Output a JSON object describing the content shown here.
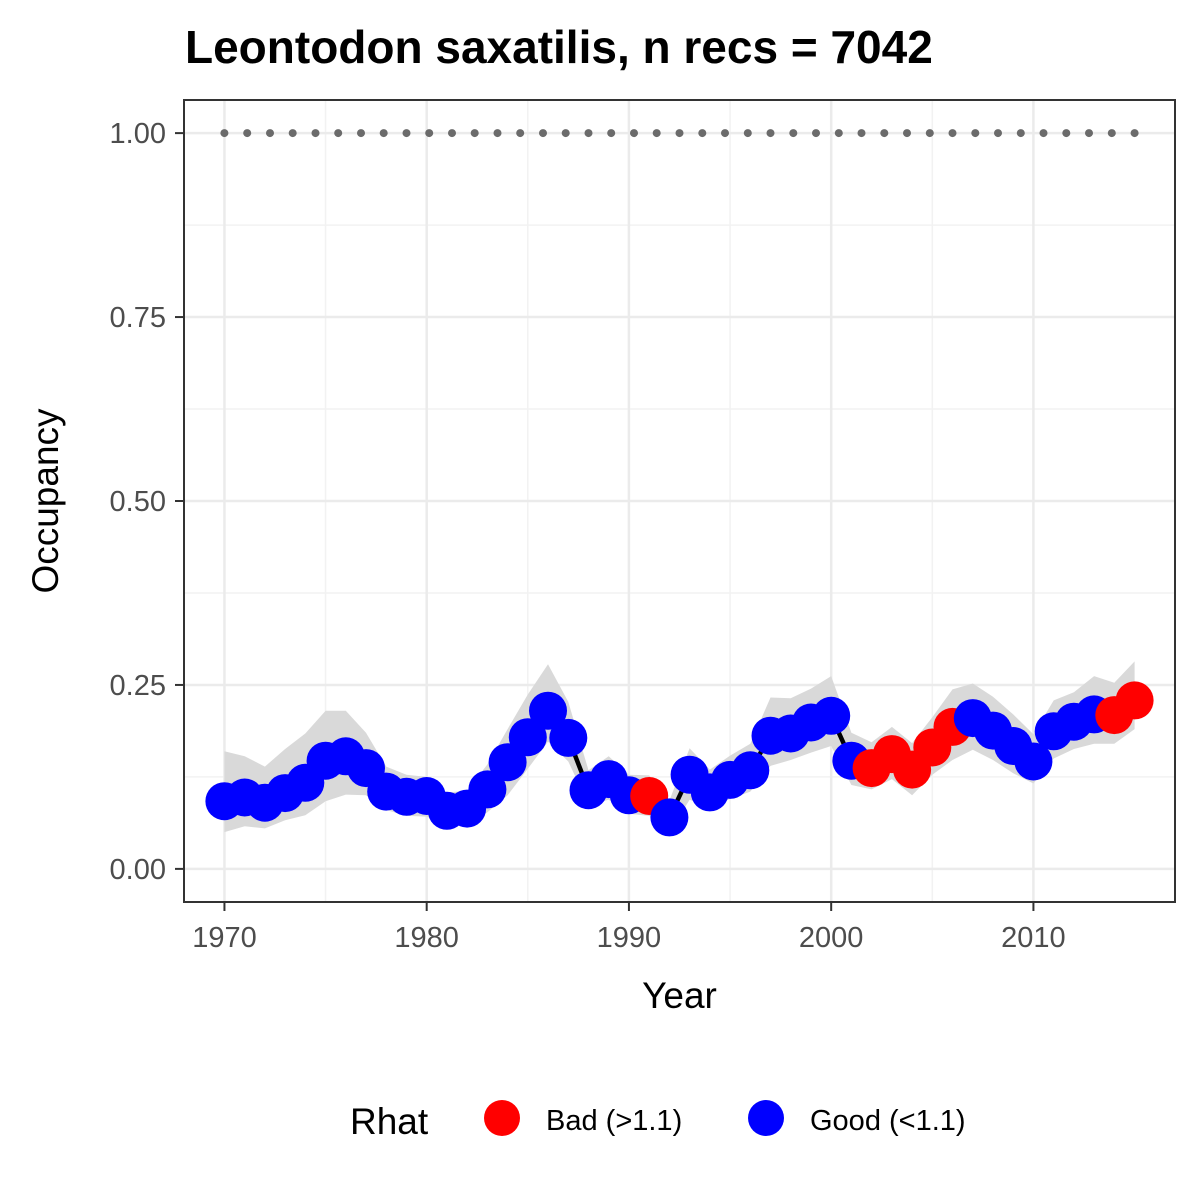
{
  "chart_data": {
    "type": "line",
    "title": "Leontodon saxatilis, n recs = 7042",
    "xlabel": "Year",
    "ylabel": "Occupancy",
    "xlim": [
      1968,
      2017
    ],
    "ylim": [
      -0.045,
      1.045
    ],
    "x_ticks": [
      1970,
      1980,
      1990,
      2000,
      2010
    ],
    "x_tick_labels": [
      "1970",
      "1980",
      "1990",
      "2000",
      "2010"
    ],
    "y_ticks": [
      0,
      0.25,
      0.5,
      0.75,
      1.0
    ],
    "y_tick_labels": [
      "0.00",
      "0.25",
      "0.50",
      "0.75",
      "1.00"
    ],
    "grid": true,
    "legend": {
      "title": "Rhat",
      "position": "bottom",
      "entries": [
        {
          "label": "Bad (>1.1)",
          "color": "#ff0000"
        },
        {
          "label": "Good (<1.1)",
          "color": "#0000ff"
        }
      ]
    },
    "colors": {
      "bad": "#ff0000",
      "good": "#0000ff",
      "line": "#000000",
      "ribbon": "#d9d9d9",
      "reference": "#6b6b6b"
    },
    "reference_line": {
      "y": 1.0,
      "style": "dotted"
    },
    "series": [
      {
        "x": [
          1970,
          1971,
          1972,
          1973,
          1974,
          1975,
          1976,
          1977,
          1978,
          1979,
          1980,
          1981,
          1982,
          1983,
          1984,
          1985,
          1986,
          1987,
          1988,
          1989,
          1990,
          1991,
          1992,
          1993,
          1994,
          1995,
          1996,
          1997,
          1998,
          1999,
          2000,
          2001,
          2002,
          2003,
          2004,
          2005,
          2006,
          2007,
          2008,
          2009,
          2010,
          2011,
          2012,
          2013,
          2014,
          2015
        ],
        "y": [
          0.092,
          0.097,
          0.09,
          0.103,
          0.117,
          0.147,
          0.153,
          0.137,
          0.105,
          0.098,
          0.099,
          0.079,
          0.082,
          0.108,
          0.145,
          0.179,
          0.215,
          0.178,
          0.107,
          0.122,
          0.1,
          0.099,
          0.07,
          0.128,
          0.104,
          0.121,
          0.134,
          0.181,
          0.184,
          0.199,
          0.208,
          0.147,
          0.137,
          0.156,
          0.135,
          0.165,
          0.193,
          0.205,
          0.188,
          0.167,
          0.146,
          0.187,
          0.2,
          0.21,
          0.209,
          0.229
        ],
        "lower": [
          0.05,
          0.058,
          0.055,
          0.066,
          0.073,
          0.092,
          0.101,
          0.1,
          0.08,
          0.072,
          0.071,
          0.058,
          0.059,
          0.077,
          0.1,
          0.136,
          0.173,
          0.146,
          0.087,
          0.094,
          0.075,
          0.072,
          0.05,
          0.094,
          0.084,
          0.095,
          0.105,
          0.14,
          0.148,
          0.158,
          0.167,
          0.114,
          0.108,
          0.122,
          0.1,
          0.128,
          0.148,
          0.162,
          0.148,
          0.13,
          0.116,
          0.15,
          0.163,
          0.17,
          0.17,
          0.19
        ],
        "upper": [
          0.16,
          0.153,
          0.139,
          0.163,
          0.184,
          0.215,
          0.215,
          0.185,
          0.139,
          0.128,
          0.125,
          0.104,
          0.106,
          0.142,
          0.19,
          0.237,
          0.278,
          0.227,
          0.134,
          0.153,
          0.128,
          0.127,
          0.093,
          0.164,
          0.135,
          0.154,
          0.17,
          0.233,
          0.232,
          0.245,
          0.262,
          0.185,
          0.172,
          0.193,
          0.171,
          0.206,
          0.244,
          0.252,
          0.234,
          0.21,
          0.183,
          0.229,
          0.24,
          0.262,
          0.253,
          0.282
        ],
        "rhat": [
          "good",
          "good",
          "good",
          "good",
          "good",
          "good",
          "good",
          "good",
          "good",
          "good",
          "good",
          "good",
          "good",
          "good",
          "good",
          "good",
          "good",
          "good",
          "good",
          "good",
          "good",
          "bad",
          "good",
          "good",
          "good",
          "good",
          "good",
          "good",
          "good",
          "good",
          "good",
          "good",
          "bad",
          "bad",
          "bad",
          "bad",
          "bad",
          "good",
          "good",
          "good",
          "good",
          "good",
          "good",
          "good",
          "bad",
          "bad"
        ]
      }
    ]
  }
}
